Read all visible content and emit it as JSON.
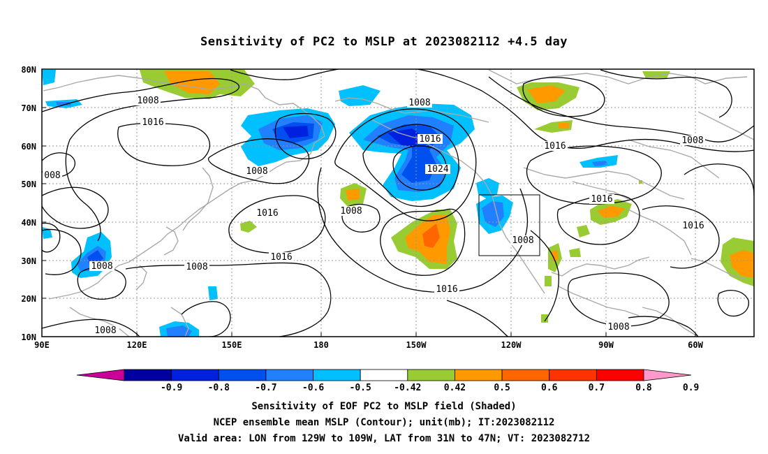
{
  "title": "Sensitivity of PC2 to MSLP at 2023082112 +4.5 day",
  "map": {
    "lat_labels": [
      "80N",
      "70N",
      "60N",
      "50N",
      "40N",
      "30N",
      "20N",
      "10N"
    ],
    "lon_labels": [
      "90E",
      "120E",
      "150E",
      "180",
      "150W",
      "120W",
      "90W",
      "60W"
    ],
    "valid_box": {
      "lon_from": "129W",
      "lon_to": "109W",
      "lat_from": "31N",
      "lat_to": "47N"
    },
    "contour_labels": [
      {
        "text": "1008",
        "note": "upper-left"
      },
      {
        "text": "1016",
        "note": "siberia"
      },
      {
        "text": "008",
        "note": "west-edge"
      },
      {
        "text": "1008",
        "note": "china"
      },
      {
        "text": "1008",
        "note": "south-asia"
      },
      {
        "text": "1008",
        "note": "kamchatka"
      },
      {
        "text": "1016",
        "note": "japan-east"
      },
      {
        "text": "1016",
        "note": "pacific-central"
      },
      {
        "text": "1008",
        "note": "north-pacific-center"
      },
      {
        "text": "1008",
        "note": "alaska"
      },
      {
        "text": "1016",
        "note": "gulf-of-alaska"
      },
      {
        "text": "1024",
        "note": "pacific-high"
      },
      {
        "text": "1016",
        "note": "subtropical"
      },
      {
        "text": "1008",
        "note": "west-coast"
      },
      {
        "text": "1016",
        "note": "canada"
      },
      {
        "text": "1008",
        "note": "hudson-bay"
      },
      {
        "text": "1016",
        "note": "great-lakes"
      },
      {
        "text": "1016",
        "note": "atlantic"
      },
      {
        "text": "1008",
        "note": "mexico"
      }
    ]
  },
  "colorbar": {
    "labels": [
      "-0.9",
      "-0.8",
      "-0.7",
      "-0.6",
      "-0.5",
      "-0.42",
      "0.42",
      "0.5",
      "0.6",
      "0.7",
      "0.8",
      "0.9"
    ],
    "colors": [
      "#cc0099",
      "#0000a0",
      "#0020e0",
      "#0050f0",
      "#2080ff",
      "#00c0ff",
      "#ffffff",
      "#99cc33",
      "#ff9900",
      "#ff6600",
      "#ff3300",
      "#ff0000",
      "#ff99cc"
    ]
  },
  "captions": {
    "line1": "Sensitivity of EOF PC2 to MSLP field (Shaded)",
    "line2": "NCEP ensemble mean MSLP (Contour); unit(mb); IT:2023082112",
    "line3": "Valid area: LON from 129W to 109W, LAT from 31N to 47N; VT: 2023082712"
  }
}
